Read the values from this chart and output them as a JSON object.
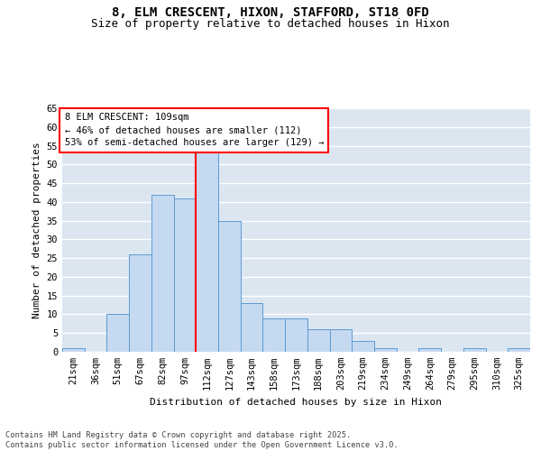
{
  "title": "8, ELM CRESCENT, HIXON, STAFFORD, ST18 0FD",
  "subtitle": "Size of property relative to detached houses in Hixon",
  "xlabel": "Distribution of detached houses by size in Hixon",
  "ylabel": "Number of detached properties",
  "bar_color": "#c5d9f0",
  "bar_edge_color": "#5b9bd5",
  "background_color": "#dce6f1",
  "grid_color": "#ffffff",
  "categories": [
    "21sqm",
    "36sqm",
    "51sqm",
    "67sqm",
    "82sqm",
    "97sqm",
    "112sqm",
    "127sqm",
    "143sqm",
    "158sqm",
    "173sqm",
    "188sqm",
    "203sqm",
    "219sqm",
    "234sqm",
    "249sqm",
    "264sqm",
    "279sqm",
    "295sqm",
    "310sqm",
    "325sqm"
  ],
  "values": [
    1,
    0,
    10,
    26,
    42,
    41,
    54,
    35,
    13,
    9,
    9,
    6,
    6,
    3,
    1,
    0,
    1,
    0,
    1,
    0,
    1
  ],
  "ylim": [
    0,
    65
  ],
  "yticks": [
    0,
    5,
    10,
    15,
    20,
    25,
    30,
    35,
    40,
    45,
    50,
    55,
    60,
    65
  ],
  "marker_line_bin": 6,
  "annotation_text": "8 ELM CRESCENT: 109sqm\n← 46% of detached houses are smaller (112)\n53% of semi-detached houses are larger (129) →",
  "footer_text": "Contains HM Land Registry data © Crown copyright and database right 2025.\nContains public sector information licensed under the Open Government Licence v3.0.",
  "title_fontsize": 10,
  "subtitle_fontsize": 9,
  "axis_fontsize": 8,
  "tick_fontsize": 7.5
}
